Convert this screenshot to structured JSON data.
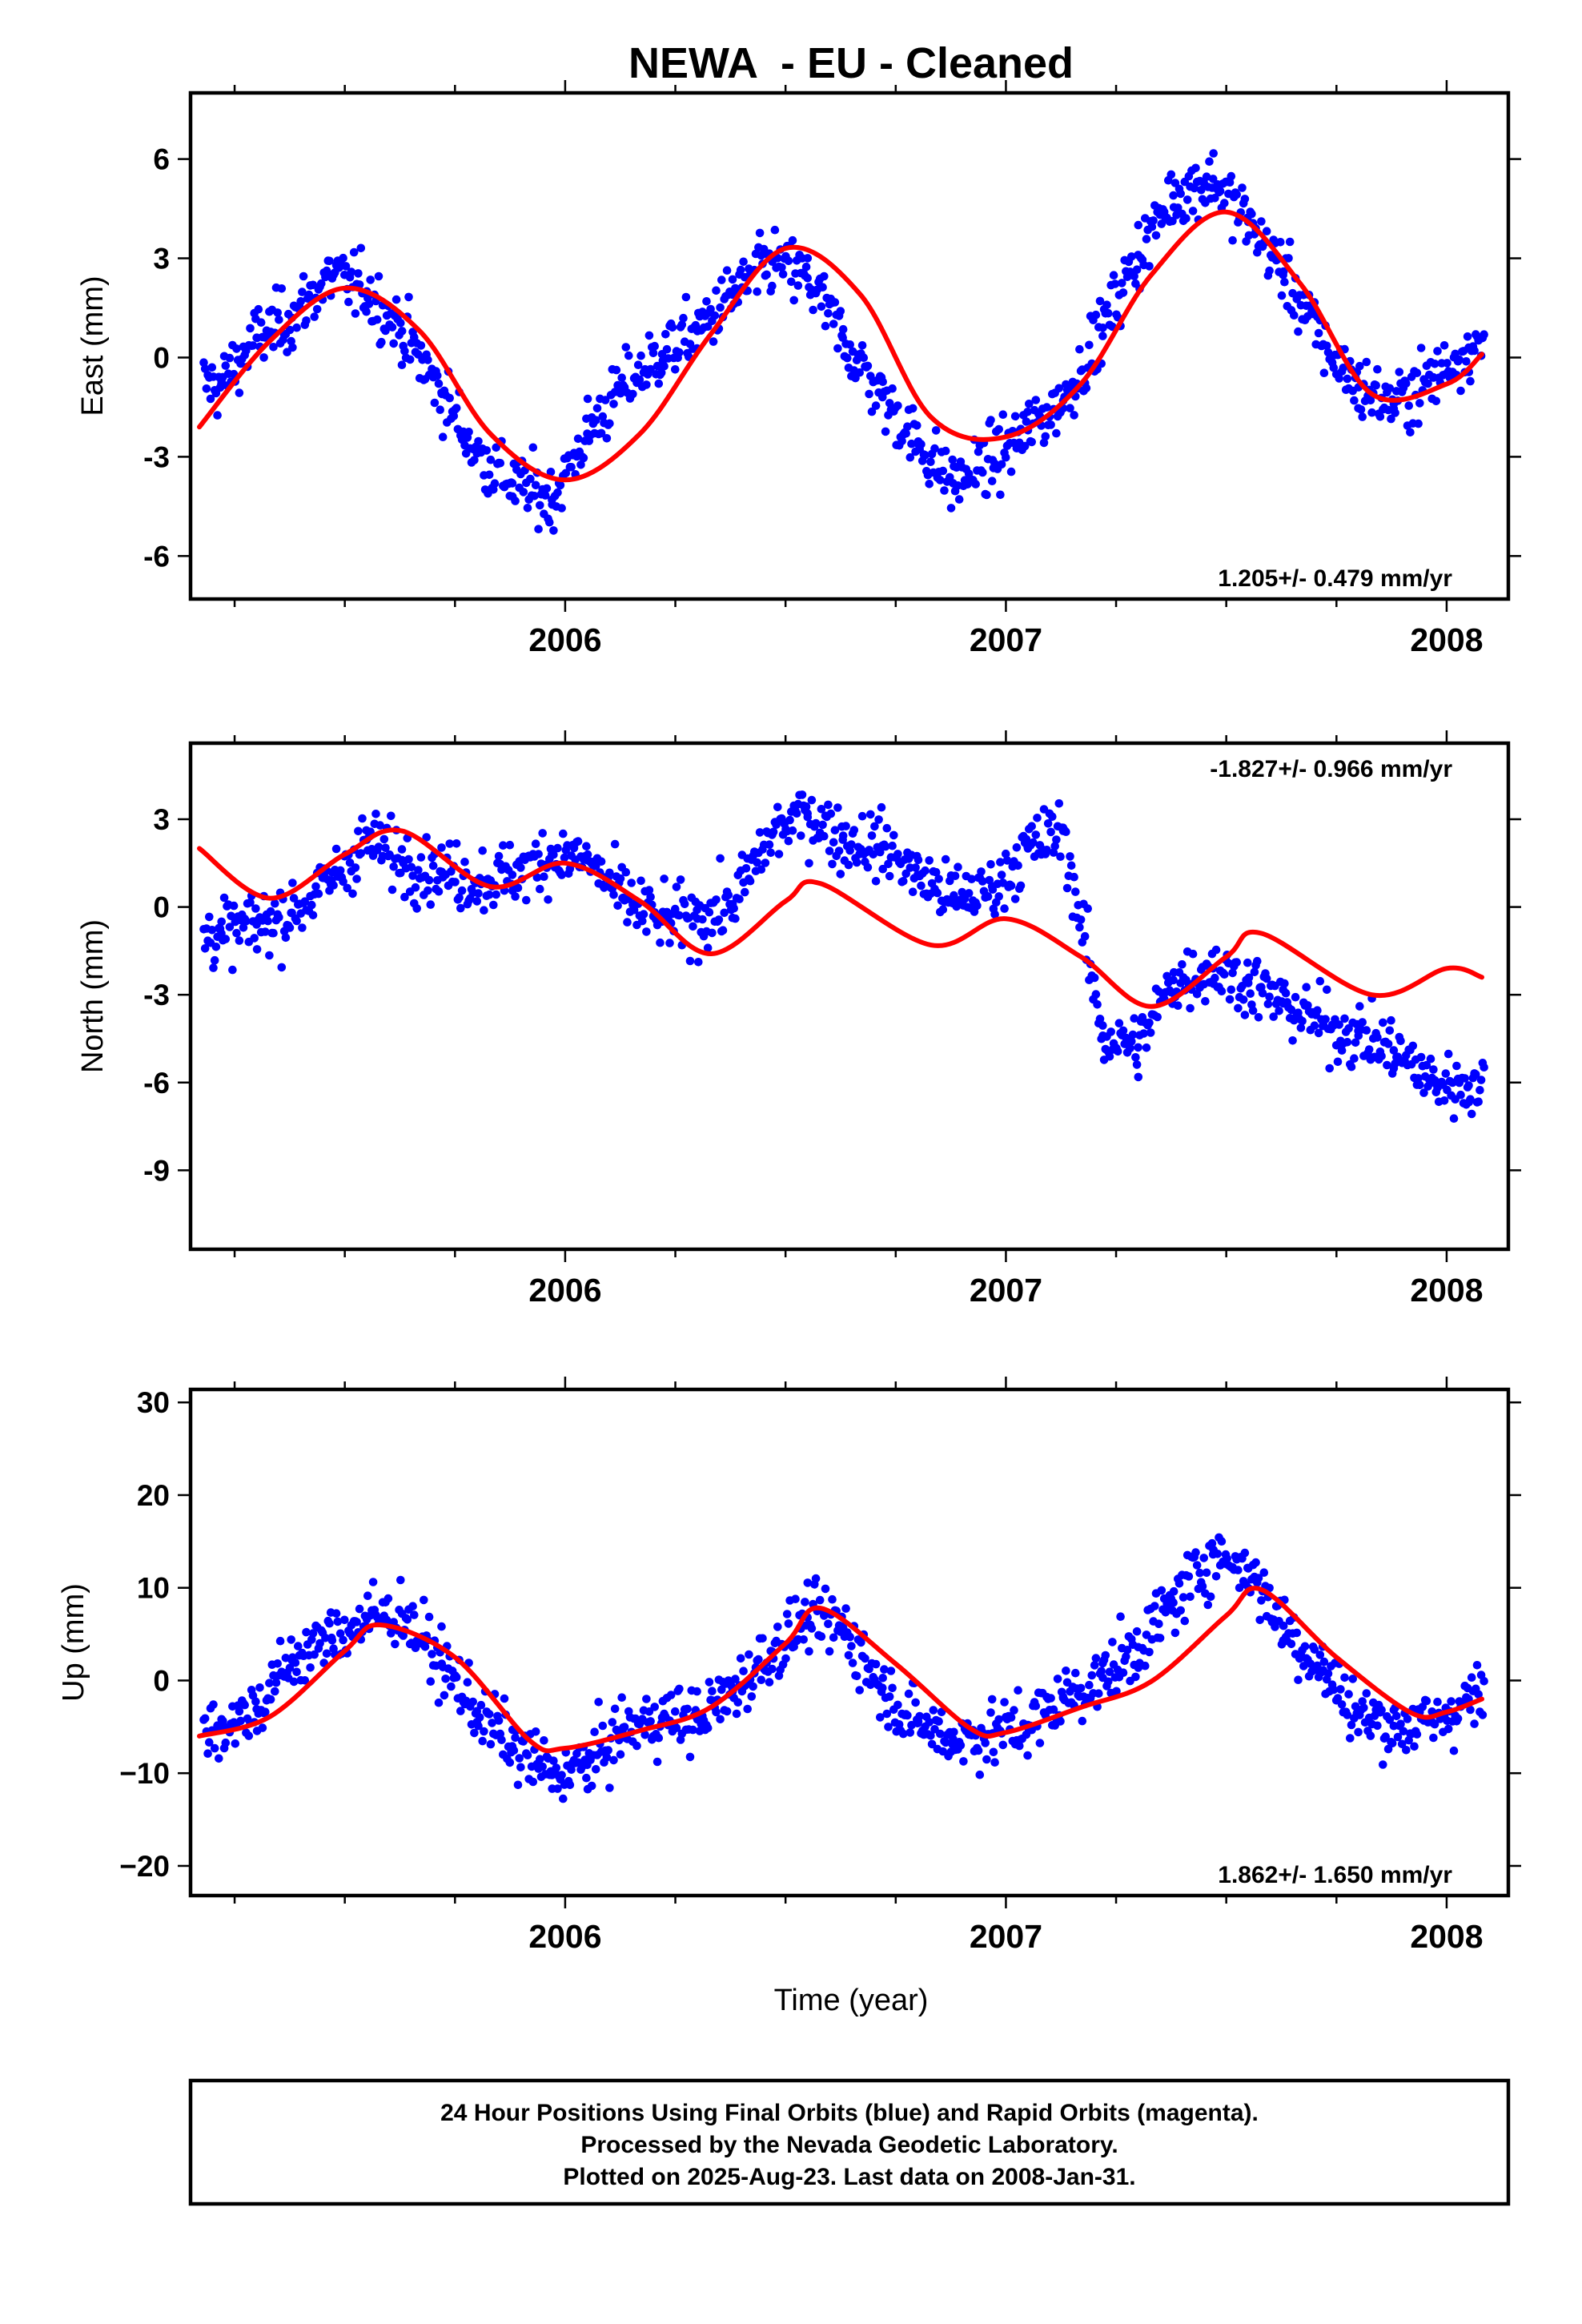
{
  "title": "NEWA  - EU - Cleaned",
  "xlabel": "Time (year)",
  "caption": [
    "24 Hour Positions Using Final Orbits (blue) and Rapid Orbits (magenta).",
    "Processed by the Nevada Geodetic Laboratory.",
    "Plotted on 2025-Aug-23. Last data on 2008-Jan-31."
  ],
  "colors": {
    "points": "#0000ff",
    "fit": "#ff0000",
    "frame": "#000000"
  },
  "chart_data": [
    {
      "type": "scatter",
      "panel": "east",
      "ylabel": "East (mm)",
      "rate_text": "1.205+/- 0.479 mm/yr",
      "rate_position": "bottom-right",
      "xlim": [
        2005.15,
        2008.14
      ],
      "ylim": [
        -7.3,
        8.0
      ],
      "xticks": [
        2006,
        2007,
        2008
      ],
      "yticks": [
        -6,
        -3,
        0,
        3,
        6
      ],
      "ytick_labels": [
        "-6",
        "-3",
        "0",
        "3",
        "6"
      ],
      "series": [
        {
          "kind": "points",
          "x": [
            2005.22,
            2005.3,
            2005.38,
            2005.47,
            2005.55,
            2005.63,
            2005.72,
            2005.8,
            2005.88,
            2005.97,
            2006.05,
            2006.13,
            2006.22,
            2006.3,
            2006.38,
            2006.47,
            2006.55,
            2006.63,
            2006.72,
            2006.8,
            2006.88,
            2006.97,
            2007.05,
            2007.13,
            2007.22,
            2007.3,
            2007.38,
            2007.47,
            2007.55,
            2007.63,
            2007.72,
            2007.8,
            2007.88,
            2007.97,
            2008.05
          ],
          "y": [
            -0.8,
            0.6,
            1.2,
            2.5,
            2.0,
            0.8,
            -1.1,
            -2.9,
            -3.8,
            -4.3,
            -2.3,
            -0.9,
            0.1,
            0.8,
            1.9,
            2.9,
            2.4,
            0.6,
            -1.2,
            -2.6,
            -3.8,
            -3.1,
            -2.2,
            -1.3,
            0.9,
            3.1,
            4.9,
            5.4,
            4.1,
            2.6,
            0.4,
            -0.9,
            -1.4,
            -0.6,
            0.3
          ]
        },
        {
          "kind": "fit",
          "x": [
            2005.17,
            2005.33,
            2005.5,
            2005.67,
            2005.83,
            2006.0,
            2006.17,
            2006.33,
            2006.5,
            2006.67,
            2006.83,
            2007.0,
            2007.17,
            2007.33,
            2007.5,
            2007.67,
            2007.83,
            2008.0,
            2008.08
          ],
          "y": [
            -2.1,
            0.5,
            2.1,
            0.8,
            -2.3,
            -3.7,
            -2.3,
            0.7,
            3.3,
            1.9,
            -1.8,
            -2.4,
            -0.8,
            2.5,
            4.4,
            2.2,
            -1.1,
            -0.8,
            0.1
          ]
        }
      ]
    },
    {
      "type": "scatter",
      "panel": "north",
      "ylabel": "North (mm)",
      "rate_text": "-1.827+/- 0.966 mm/yr",
      "rate_position": "top-right",
      "xlim": [
        2005.15,
        2008.14
      ],
      "ylim": [
        -11.7,
        5.6
      ],
      "xticks": [
        2006,
        2007,
        2008
      ],
      "yticks": [
        -9,
        -6,
        -3,
        0,
        3
      ],
      "ytick_labels": [
        "-9",
        "-6",
        "-3",
        "0",
        "3"
      ],
      "series": [
        {
          "kind": "points",
          "x": [
            2005.22,
            2005.3,
            2005.38,
            2005.47,
            2005.55,
            2005.63,
            2005.72,
            2005.8,
            2005.88,
            2005.97,
            2006.05,
            2006.13,
            2006.22,
            2006.3,
            2006.38,
            2006.47,
            2006.55,
            2006.63,
            2006.72,
            2006.8,
            2006.88,
            2006.97,
            2007.05,
            2007.13,
            2007.22,
            2007.3,
            2007.38,
            2007.47,
            2007.55,
            2007.63,
            2007.72,
            2007.8,
            2007.88,
            2007.97,
            2008.05
          ],
          "y": [
            -0.9,
            -0.6,
            -0.2,
            0.9,
            2.3,
            1.6,
            1.2,
            0.9,
            1.1,
            1.8,
            1.6,
            0.3,
            -0.5,
            -0.4,
            0.1,
            2.5,
            3.2,
            2.3,
            2.1,
            1.1,
            0.3,
            0.6,
            2.0,
            2.6,
            -4.4,
            -4.8,
            -2.5,
            -2.1,
            -2.6,
            -3.3,
            -4.0,
            -4.4,
            -4.9,
            -6.0,
            -6.1
          ]
        },
        {
          "kind": "fit",
          "x": [
            2005.17,
            2005.33,
            2005.5,
            2005.63,
            2005.83,
            2006.0,
            2006.17,
            2006.33,
            2006.5,
            2006.58,
            2006.83,
            2007.0,
            2007.17,
            2007.33,
            2007.5,
            2007.58,
            2007.83,
            2008.0,
            2008.08
          ],
          "y": [
            2.0,
            0.3,
            1.8,
            2.6,
            0.7,
            1.5,
            0.2,
            -1.6,
            0.2,
            0.8,
            -1.3,
            -0.4,
            -1.7,
            -3.4,
            -1.7,
            -0.9,
            -3.0,
            -2.1,
            -2.4
          ]
        }
      ]
    },
    {
      "type": "scatter",
      "panel": "up",
      "ylabel": "Up (mm)",
      "rate_text": "1.862+/- 1.650 mm/yr",
      "rate_position": "bottom-right",
      "xlim": [
        2005.15,
        2008.14
      ],
      "ylim": [
        -23.2,
        31.4
      ],
      "xticks": [
        2006,
        2007,
        2008
      ],
      "yticks": [
        -20,
        -10,
        0,
        10,
        20,
        30
      ],
      "ytick_labels": [
        "−20",
        "−10",
        "0",
        "10",
        "20",
        "30"
      ],
      "series": [
        {
          "kind": "points",
          "x": [
            2005.22,
            2005.3,
            2005.38,
            2005.47,
            2005.55,
            2005.63,
            2005.72,
            2005.8,
            2005.88,
            2005.97,
            2006.05,
            2006.13,
            2006.22,
            2006.3,
            2006.38,
            2006.47,
            2006.55,
            2006.63,
            2006.72,
            2006.8,
            2006.88,
            2006.97,
            2007.05,
            2007.13,
            2007.22,
            2007.3,
            2007.38,
            2007.47,
            2007.55,
            2007.63,
            2007.72,
            2007.8,
            2007.88,
            2007.97,
            2008.05
          ],
          "y": [
            -5.0,
            -3.1,
            2.2,
            4.6,
            6.6,
            7.2,
            1.8,
            -3.3,
            -7.1,
            -10.2,
            -9.1,
            -5.4,
            -4.0,
            -4.2,
            -1.2,
            3.1,
            6.8,
            5.8,
            -0.8,
            -4.6,
            -6.3,
            -5.7,
            -4.8,
            -1.9,
            0.3,
            3.6,
            8.4,
            13.6,
            12.1,
            5.9,
            1.1,
            -3.7,
            -4.9,
            -4.6,
            -2.0
          ]
        },
        {
          "kind": "fit",
          "x": [
            2005.17,
            2005.33,
            2005.5,
            2005.58,
            2005.75,
            2005.92,
            2006.0,
            2006.17,
            2006.33,
            2006.5,
            2006.58,
            2006.75,
            2006.92,
            2007.0,
            2007.17,
            2007.33,
            2007.5,
            2007.58,
            2007.75,
            2007.92,
            2008.0,
            2008.08
          ],
          "y": [
            -6.0,
            -3.9,
            3.2,
            6.0,
            2.5,
            -6.5,
            -7.3,
            -5.4,
            -2.9,
            4.0,
            7.8,
            1.8,
            -5.2,
            -5.6,
            -2.9,
            -0.1,
            7.0,
            9.8,
            2.5,
            -3.5,
            -3.4,
            -2.0
          ]
        }
      ]
    }
  ]
}
